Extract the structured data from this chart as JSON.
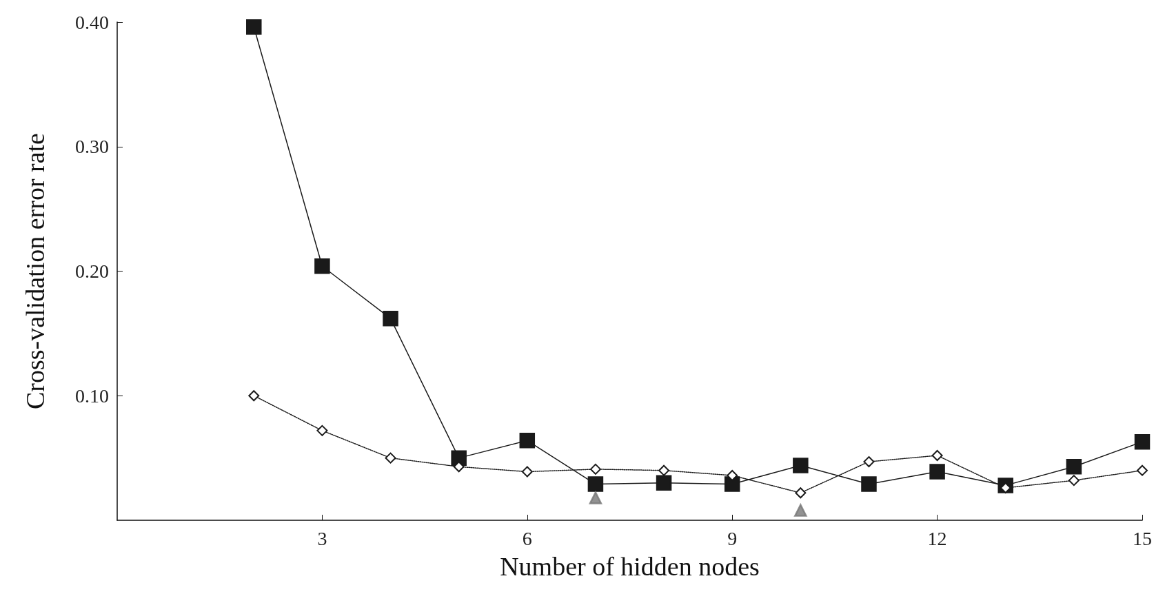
{
  "chart_data": {
    "type": "line",
    "xlabel": "Number of hidden nodes",
    "ylabel": "Cross-validation error rate",
    "x": [
      2,
      3,
      4,
      5,
      6,
      7,
      8,
      9,
      10,
      11,
      12,
      13,
      14,
      15
    ],
    "xlim": [
      0,
      15
    ],
    "xticks": [
      3,
      6,
      9,
      12,
      15
    ],
    "ylim": [
      0,
      0.4
    ],
    "yticks": [
      {
        "value": 0.1,
        "label": "0.10"
      },
      {
        "value": 0.2,
        "label": "0.20"
      },
      {
        "value": 0.3,
        "label": "0.30"
      },
      {
        "value": 0.4,
        "label": "0.40"
      }
    ],
    "grid": false,
    "series": [
      {
        "color": "#1a1a1a",
        "marker": "square",
        "line_style": "solid",
        "values": [
          0.396,
          0.204,
          0.162,
          0.05,
          0.064,
          0.029,
          0.03,
          0.029,
          0.044,
          0.029,
          0.039,
          0.028,
          0.043,
          0.063
        ]
      },
      {
        "color": "#1a1a1a",
        "marker": "diamond",
        "line_style": "dotted",
        "values": [
          0.1,
          0.072,
          0.05,
          0.043,
          0.039,
          0.041,
          0.04,
          0.036,
          0.022,
          0.047,
          0.052,
          0.026,
          0.032,
          0.04
        ]
      },
      {
        "type": "scatter",
        "color": "#777777",
        "marker": "triangle",
        "x": [
          7,
          10
        ],
        "values": [
          0.018,
          0.008
        ]
      }
    ]
  }
}
